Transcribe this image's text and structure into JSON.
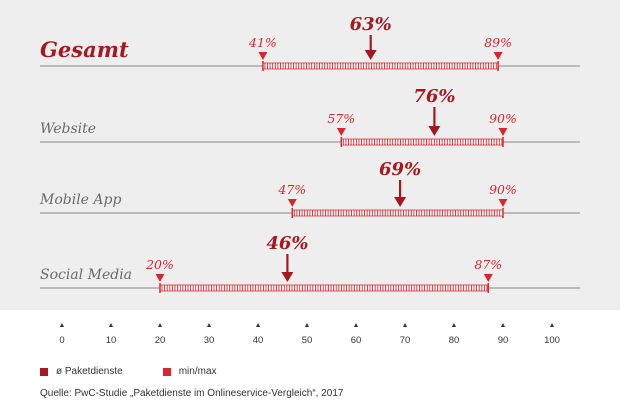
{
  "chart_data": {
    "type": "range",
    "xlim": [
      0,
      100
    ],
    "ticks": [
      0,
      10,
      20,
      30,
      40,
      50,
      60,
      70,
      80,
      90,
      100
    ],
    "unit": "%",
    "rows": [
      {
        "label": "Gesamt",
        "min": 41,
        "avg": 63,
        "max": 89,
        "min_label": "41%",
        "avg_label": "63%",
        "max_label": "89%"
      },
      {
        "label": "Website",
        "min": 57,
        "avg": 76,
        "max": 90,
        "min_label": "57%",
        "avg_label": "76%",
        "max_label": "90%"
      },
      {
        "label": "Mobile App",
        "min": 47,
        "avg": 69,
        "max": 90,
        "min_label": "47%",
        "avg_label": "69%",
        "max_label": "90%"
      },
      {
        "label": "Social Media",
        "min": 20,
        "avg": 46,
        "max": 87,
        "min_label": "20%",
        "avg_label": "46%",
        "max_label": "87%"
      }
    ],
    "legend": [
      {
        "name": "ø Paketdienste",
        "color": "#a3191f"
      },
      {
        "name": "min/max",
        "color": "#d9262e"
      }
    ]
  },
  "source": "Quelle: PwC-Studie „Paketdienste im Onlineservice-Vergleich“, 2017",
  "colors": {
    "panel": "#efeeee",
    "axis_line": "#9a9a9a",
    "dark_red": "#a3191f",
    "bright_red": "#d9262e",
    "label_gray": "#6b6b6b"
  }
}
